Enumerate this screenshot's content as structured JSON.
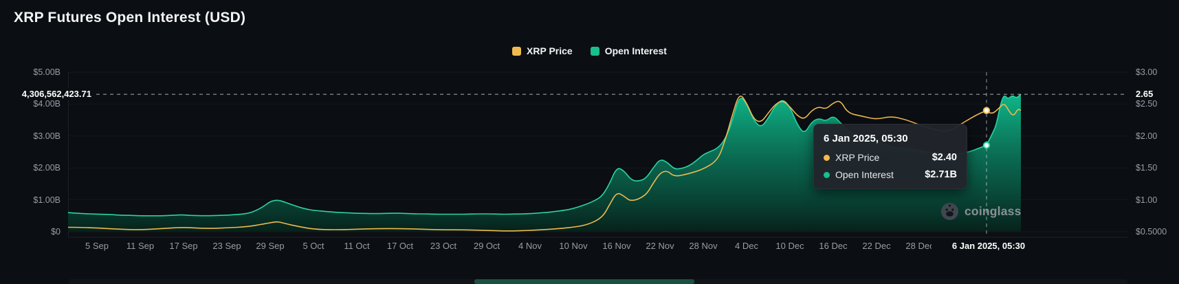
{
  "title": "XRP Futures Open Interest (USD)",
  "legend": [
    {
      "label": "XRP Price",
      "color": "#EFBA4F"
    },
    {
      "label": "Open Interest",
      "color": "#17C08C"
    }
  ],
  "colors": {
    "background": "#0B0E12",
    "axis_text": "#98A0A8",
    "price_line": "#EFBA4F",
    "oi_line": "#2BD3A4",
    "oi_fill_top": "#0FBF8F",
    "oi_fill_bottom": "#06231B",
    "tooltip_bg": "#21252B",
    "highlight_text": "#FFFFFF",
    "crosshair": "#DCE1E6"
  },
  "left_axis": {
    "latest_label": "4,306,562,423.71",
    "ticks": [
      {
        "label": "$5.00B",
        "value": 5
      },
      {
        "label": "$4.00B",
        "value": 4
      },
      {
        "label": "$3.00B",
        "value": 3
      },
      {
        "label": "$2.00B",
        "value": 2
      },
      {
        "label": "$1.00B",
        "value": 1
      },
      {
        "label": "$0",
        "value": 0
      }
    ]
  },
  "right_axis": {
    "latest_label": "2.65",
    "ticks": [
      {
        "label": "$3.00",
        "value": 3.0
      },
      {
        "label": "$2.50",
        "value": 2.5
      },
      {
        "label": "$2.00",
        "value": 2.0
      },
      {
        "label": "$1.50",
        "value": 1.5
      },
      {
        "label": "$1.00",
        "value": 1.0
      },
      {
        "label": "$0.5000",
        "value": 0.5
      }
    ]
  },
  "x_axis": {
    "highlight_tick": "6 Jan 2025, 05:30"
  },
  "tooltip": {
    "title": "6 Jan 2025, 05:30",
    "rows": [
      {
        "label": "XRP Price",
        "value": "$2.40",
        "color": "#EFBA4F"
      },
      {
        "label": "Open Interest",
        "value": "$2.71B",
        "color": "#17C08C"
      }
    ]
  },
  "watermark": "coinglass",
  "chart_data": {
    "type": "area",
    "title": "XRP Futures Open Interest (USD)",
    "x_axis": {
      "unit": "date",
      "start": "1 Sep 2024",
      "end": "9 Jan 2025",
      "note": "t = days since 2 Sep 2024"
    },
    "left_axis": {
      "name": "Open Interest (USD)",
      "range_billions": [
        0,
        5
      ]
    },
    "right_axis": {
      "name": "XRP Price (USD)",
      "range": [
        0.5,
        3.0
      ]
    },
    "grid": false,
    "legend_position": "top-center",
    "x_ticks": [
      {
        "t": 3,
        "label": "5 Sep"
      },
      {
        "t": 9,
        "label": "11 Sep"
      },
      {
        "t": 15,
        "label": "17 Sep"
      },
      {
        "t": 21,
        "label": "23 Sep"
      },
      {
        "t": 27,
        "label": "29 Sep"
      },
      {
        "t": 33,
        "label": "5 Oct"
      },
      {
        "t": 39,
        "label": "11 Oct"
      },
      {
        "t": 45,
        "label": "17 Oct"
      },
      {
        "t": 51,
        "label": "23 Oct"
      },
      {
        "t": 57,
        "label": "29 Oct"
      },
      {
        "t": 63,
        "label": "4 Nov"
      },
      {
        "t": 69,
        "label": "10 Nov"
      },
      {
        "t": 75,
        "label": "16 Nov"
      },
      {
        "t": 81,
        "label": "22 Nov"
      },
      {
        "t": 87,
        "label": "28 Nov"
      },
      {
        "t": 93,
        "label": "4 Dec"
      },
      {
        "t": 99,
        "label": "10 Dec"
      },
      {
        "t": 105,
        "label": "16 Dec"
      },
      {
        "t": 111,
        "label": "22 Dec"
      },
      {
        "t": 117,
        "label": "28 Dec"
      }
    ],
    "series": [
      {
        "name": "XRP Price",
        "type": "line",
        "axis": "right",
        "color": "#EFBA4F",
        "unit": "USD",
        "points": [
          [
            -1,
            0.57
          ],
          [
            0,
            0.57
          ],
          [
            3,
            0.56
          ],
          [
            6,
            0.54
          ],
          [
            9,
            0.53
          ],
          [
            12,
            0.55
          ],
          [
            15,
            0.57
          ],
          [
            18,
            0.55
          ],
          [
            21,
            0.56
          ],
          [
            24,
            0.58
          ],
          [
            26,
            0.62
          ],
          [
            27,
            0.64
          ],
          [
            28,
            0.66
          ],
          [
            29,
            0.63
          ],
          [
            31,
            0.58
          ],
          [
            33,
            0.54
          ],
          [
            36,
            0.53
          ],
          [
            39,
            0.54
          ],
          [
            42,
            0.55
          ],
          [
            45,
            0.55
          ],
          [
            48,
            0.54
          ],
          [
            51,
            0.53
          ],
          [
            54,
            0.53
          ],
          [
            57,
            0.52
          ],
          [
            60,
            0.51
          ],
          [
            63,
            0.52
          ],
          [
            66,
            0.54
          ],
          [
            69,
            0.57
          ],
          [
            71,
            0.61
          ],
          [
            73,
            0.72
          ],
          [
            74,
            0.92
          ],
          [
            75,
            1.12
          ],
          [
            76,
            1.06
          ],
          [
            77,
            0.97
          ],
          [
            79,
            1.06
          ],
          [
            80,
            1.25
          ],
          [
            81,
            1.42
          ],
          [
            82,
            1.46
          ],
          [
            83,
            1.36
          ],
          [
            85,
            1.41
          ],
          [
            87,
            1.48
          ],
          [
            89,
            1.62
          ],
          [
            90,
            1.92
          ],
          [
            91,
            2.32
          ],
          [
            92,
            2.68
          ],
          [
            93,
            2.52
          ],
          [
            94,
            2.26
          ],
          [
            95,
            2.21
          ],
          [
            96,
            2.36
          ],
          [
            97,
            2.5
          ],
          [
            98,
            2.56
          ],
          [
            99,
            2.46
          ],
          [
            100,
            2.32
          ],
          [
            101,
            2.26
          ],
          [
            102,
            2.4
          ],
          [
            103,
            2.46
          ],
          [
            104,
            2.42
          ],
          [
            105,
            2.52
          ],
          [
            106,
            2.56
          ],
          [
            107,
            2.36
          ],
          [
            109,
            2.31
          ],
          [
            111,
            2.26
          ],
          [
            113,
            2.31
          ],
          [
            115,
            2.26
          ],
          [
            117,
            2.17
          ],
          [
            119,
            2.1
          ],
          [
            121,
            2.06
          ],
          [
            123,
            2.21
          ],
          [
            125,
            2.34
          ],
          [
            126.24,
            2.4
          ],
          [
            127,
            2.34
          ],
          [
            128,
            2.44
          ],
          [
            128.7,
            2.52
          ],
          [
            129.4,
            2.38
          ],
          [
            130,
            2.31
          ],
          [
            130.6,
            2.43
          ],
          [
            131,
            2.4
          ]
        ]
      },
      {
        "name": "Open Interest",
        "type": "area",
        "axis": "left",
        "color": "#2BD3A4",
        "unit": "USD billions",
        "points": [
          [
            -1,
            0.6
          ],
          [
            0,
            0.58
          ],
          [
            2,
            0.56
          ],
          [
            3,
            0.55
          ],
          [
            5,
            0.54
          ],
          [
            6,
            0.52
          ],
          [
            8,
            0.51
          ],
          [
            9,
            0.5
          ],
          [
            11,
            0.5
          ],
          [
            12,
            0.5
          ],
          [
            14,
            0.52
          ],
          [
            15,
            0.53
          ],
          [
            16,
            0.51
          ],
          [
            18,
            0.5
          ],
          [
            20,
            0.51
          ],
          [
            21,
            0.52
          ],
          [
            23,
            0.55
          ],
          [
            24,
            0.58
          ],
          [
            25,
            0.66
          ],
          [
            26,
            0.78
          ],
          [
            27,
            0.95
          ],
          [
            28,
            1.0
          ],
          [
            29,
            0.93
          ],
          [
            30,
            0.85
          ],
          [
            31,
            0.77
          ],
          [
            32,
            0.71
          ],
          [
            33,
            0.67
          ],
          [
            35,
            0.63
          ],
          [
            36,
            0.61
          ],
          [
            38,
            0.59
          ],
          [
            39,
            0.58
          ],
          [
            41,
            0.57
          ],
          [
            42,
            0.57
          ],
          [
            44,
            0.58
          ],
          [
            45,
            0.58
          ],
          [
            47,
            0.56
          ],
          [
            48,
            0.56
          ],
          [
            50,
            0.55
          ],
          [
            51,
            0.55
          ],
          [
            53,
            0.55
          ],
          [
            54,
            0.55
          ],
          [
            56,
            0.56
          ],
          [
            57,
            0.56
          ],
          [
            59,
            0.55
          ],
          [
            60,
            0.55
          ],
          [
            62,
            0.56
          ],
          [
            63,
            0.57
          ],
          [
            65,
            0.6
          ],
          [
            66,
            0.62
          ],
          [
            68,
            0.68
          ],
          [
            69,
            0.73
          ],
          [
            70,
            0.8
          ],
          [
            71,
            0.88
          ],
          [
            72,
            0.98
          ],
          [
            73,
            1.12
          ],
          [
            74,
            1.5
          ],
          [
            75,
            2.02
          ],
          [
            76,
            1.92
          ],
          [
            77,
            1.62
          ],
          [
            78,
            1.58
          ],
          [
            79,
            1.66
          ],
          [
            80,
            1.98
          ],
          [
            81,
            2.28
          ],
          [
            82,
            2.18
          ],
          [
            83,
            1.96
          ],
          [
            84,
            1.98
          ],
          [
            85,
            2.06
          ],
          [
            86,
            2.22
          ],
          [
            87,
            2.42
          ],
          [
            88,
            2.52
          ],
          [
            89,
            2.62
          ],
          [
            90,
            2.88
          ],
          [
            91,
            3.45
          ],
          [
            92,
            4.28
          ],
          [
            93,
            4.02
          ],
          [
            94,
            3.48
          ],
          [
            95,
            3.26
          ],
          [
            96,
            3.56
          ],
          [
            97,
            3.96
          ],
          [
            98,
            4.16
          ],
          [
            99,
            3.92
          ],
          [
            100,
            3.36
          ],
          [
            101,
            3.06
          ],
          [
            102,
            3.44
          ],
          [
            103,
            3.56
          ],
          [
            104,
            3.46
          ],
          [
            105,
            3.64
          ],
          [
            106,
            3.42
          ],
          [
            107,
            3.16
          ],
          [
            108,
            3.04
          ],
          [
            109,
            2.96
          ],
          [
            110,
            2.88
          ],
          [
            111,
            2.82
          ],
          [
            112,
            2.74
          ],
          [
            113,
            2.66
          ],
          [
            114,
            2.62
          ],
          [
            115,
            2.6
          ],
          [
            116,
            2.57
          ],
          [
            117,
            2.54
          ],
          [
            118,
            2.5
          ],
          [
            119,
            2.47
          ],
          [
            120,
            2.43
          ],
          [
            121,
            2.4
          ],
          [
            122,
            2.42
          ],
          [
            123,
            2.46
          ],
          [
            124,
            2.52
          ],
          [
            125,
            2.6
          ],
          [
            126.24,
            2.71
          ],
          [
            127,
            3.05
          ],
          [
            127.6,
            3.35
          ],
          [
            128.2,
            4.02
          ],
          [
            128.7,
            4.3
          ],
          [
            129.2,
            4.15
          ],
          [
            129.8,
            4.28
          ],
          [
            130.4,
            4.18
          ],
          [
            131,
            4.31
          ]
        ]
      }
    ],
    "latest": {
      "open_interest_usd": 4306562423.71,
      "open_interest_b": 4.3066,
      "right_axis_equiv_price": 2.65
    },
    "hover": {
      "t": 126.24,
      "label": "6 Jan 2025, 05:30",
      "xrp_price": 2.4,
      "open_interest_b": 2.71,
      "open_interest_label": "$2.71B"
    }
  }
}
